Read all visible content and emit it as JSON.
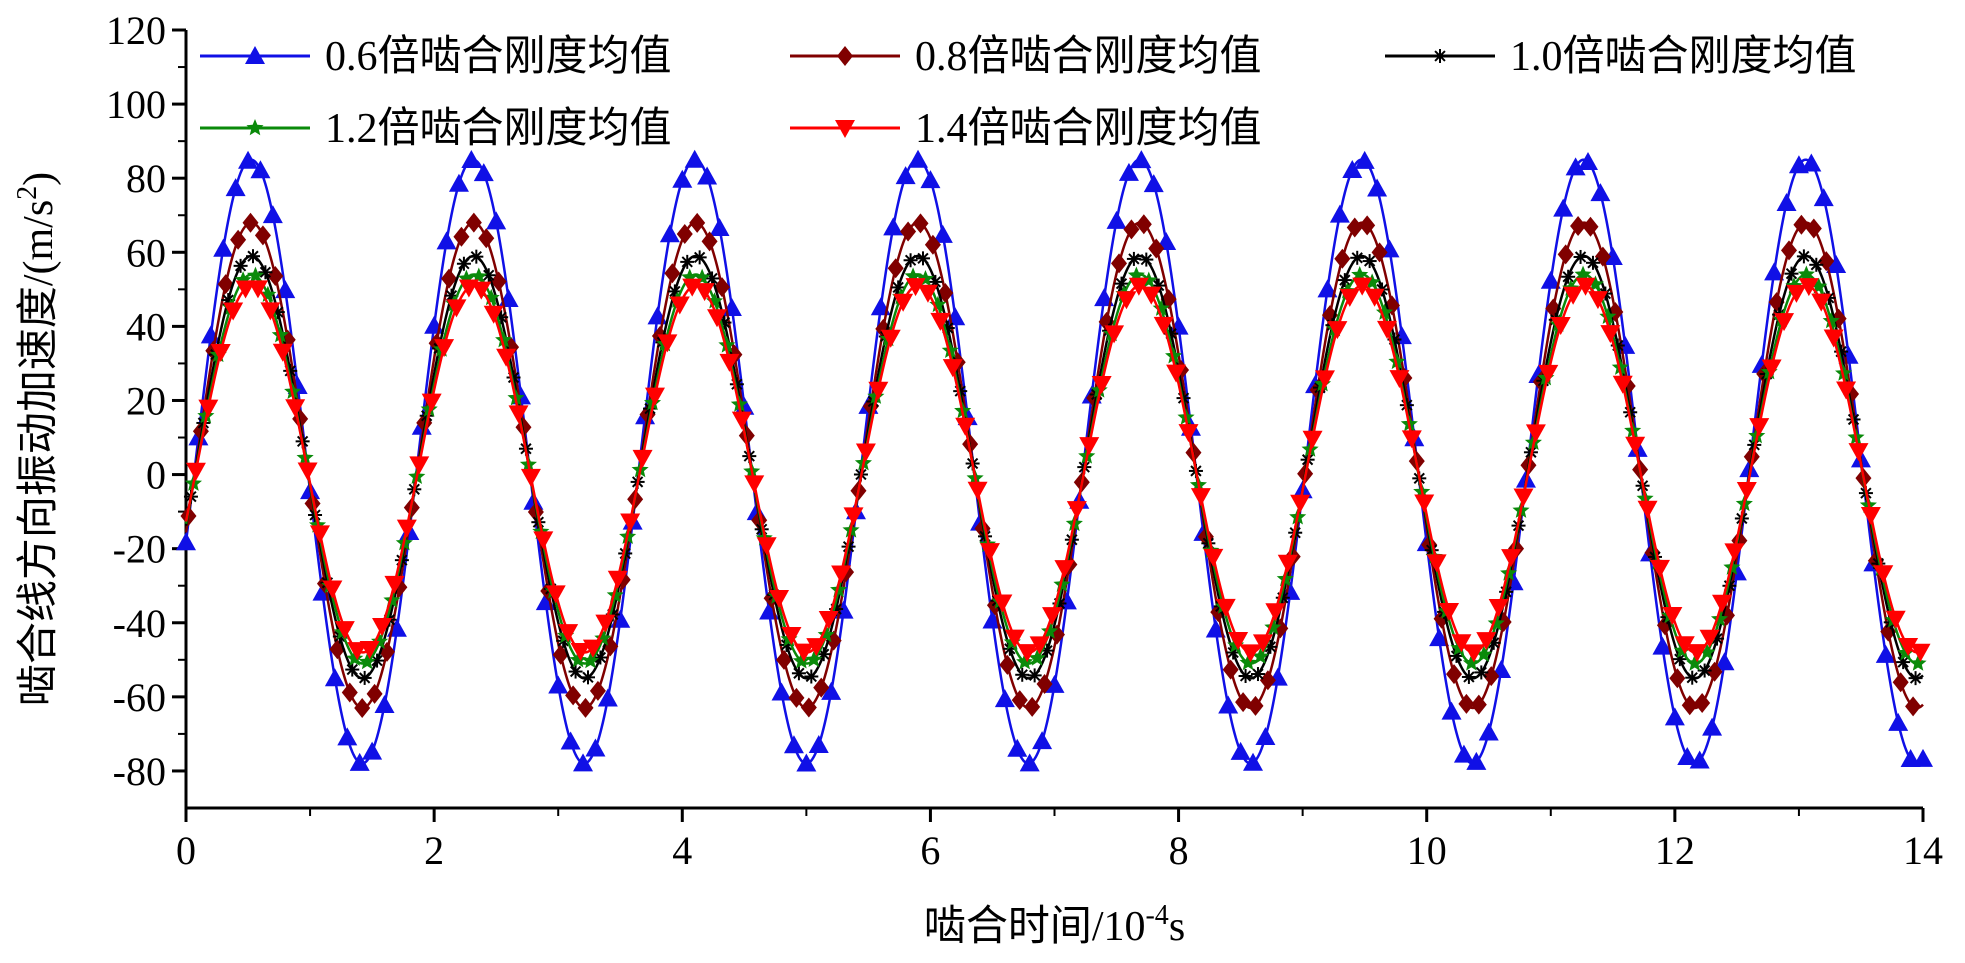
{
  "chart_data": {
    "type": "line",
    "xlabel_main": "啮合时间/10",
    "xlabel_sup": "-4",
    "xlabel_tail": "s",
    "ylabel_main": "啮合线方向振动加速度/(m/s",
    "ylabel_sup": "2",
    "ylabel_tail": ")",
    "xlim": [
      0,
      14
    ],
    "ylim": [
      -90,
      120
    ],
    "xticks": [
      0,
      2,
      4,
      6,
      8,
      10,
      12,
      14
    ],
    "yticks": [
      -80,
      -60,
      -40,
      -20,
      0,
      20,
      40,
      60,
      80,
      100,
      120
    ],
    "xtick_labels": [
      "0",
      "2",
      "4",
      "6",
      "8",
      "10",
      "12",
      "14"
    ],
    "ytick_labels": [
      "-80",
      "-60",
      "-40",
      "-20",
      "0",
      "20",
      "40",
      "60",
      "80",
      "100",
      "120"
    ],
    "period": 1.79,
    "legend_position": "top",
    "series": [
      {
        "name": "0.6倍啮合刚度均值",
        "color": "#1010e6",
        "marker": "triangle-up",
        "peak": 85,
        "trough": -78,
        "phase": 0.055
      },
      {
        "name": "0.8倍啮合刚度均值",
        "color": "#800000",
        "marker": "diamond",
        "peak": 68,
        "trough": -63,
        "phase": 0.045
      },
      {
        "name": "1.0倍啮合刚度均值",
        "color": "#000000",
        "marker": "asterisk",
        "peak": 59,
        "trough": -55,
        "phase": 0.045
      },
      {
        "name": "1.2倍啮合刚度均值",
        "color": "#0a8a0a",
        "marker": "star",
        "peak": 54,
        "trough": -51,
        "phase": 0.04
      },
      {
        "name": "1.4倍啮合刚度均值",
        "color": "#ff0000",
        "marker": "triangle-down",
        "peak": 51,
        "trough": -48,
        "phase": 0.035
      }
    ]
  }
}
